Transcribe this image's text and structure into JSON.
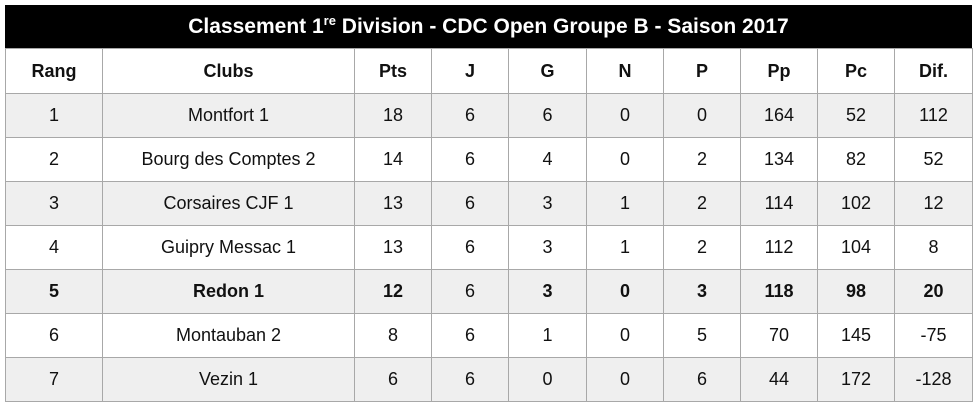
{
  "header": {
    "title_start": "Classement 1",
    "title_sup": "re",
    "title_end": " Division - CDC Open Groupe B - Saison 2017"
  },
  "table": {
    "columns": [
      "Rang",
      "Clubs",
      "Pts",
      "J",
      "G",
      "N",
      "P",
      "Pp",
      "Pc",
      "Dif."
    ],
    "rows": [
      [
        1,
        "Montfort 1",
        18,
        6,
        6,
        0,
        0,
        164,
        52,
        112
      ],
      [
        2,
        "Bourg des Comptes 2",
        14,
        6,
        4,
        0,
        2,
        134,
        82,
        52
      ],
      [
        3,
        "Corsaires CJF 1",
        13,
        6,
        3,
        1,
        2,
        114,
        102,
        12
      ],
      [
        4,
        "Guipry Messac 1",
        13,
        6,
        3,
        1,
        2,
        112,
        104,
        8
      ],
      [
        5,
        "Redon 1",
        12,
        6,
        3,
        0,
        3,
        118,
        98,
        20
      ],
      [
        6,
        "Montauban 2",
        8,
        6,
        1,
        0,
        5,
        70,
        145,
        -75
      ],
      [
        7,
        "Vezin 1",
        6,
        6,
        0,
        0,
        6,
        44,
        172,
        -128
      ]
    ]
  }
}
